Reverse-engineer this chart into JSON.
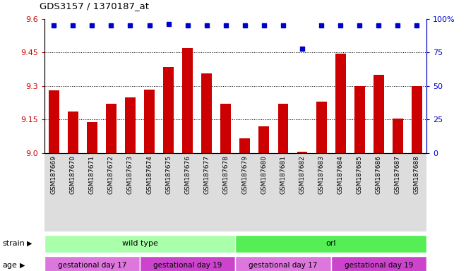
{
  "title": "GDS3157 / 1370187_at",
  "samples": [
    "GSM187669",
    "GSM187670",
    "GSM187671",
    "GSM187672",
    "GSM187673",
    "GSM187674",
    "GSM187675",
    "GSM187676",
    "GSM187677",
    "GSM187678",
    "GSM187679",
    "GSM187680",
    "GSM187681",
    "GSM187682",
    "GSM187683",
    "GSM187684",
    "GSM187685",
    "GSM187686",
    "GSM187687",
    "GSM187688"
  ],
  "bar_values": [
    9.28,
    9.185,
    9.14,
    9.22,
    9.25,
    9.285,
    9.385,
    9.47,
    9.355,
    9.22,
    9.065,
    9.12,
    9.22,
    9.005,
    9.23,
    9.445,
    9.3,
    9.35,
    9.155,
    9.3
  ],
  "percentile_values": [
    95,
    95,
    95,
    95,
    95,
    95,
    96,
    95,
    95,
    95,
    95,
    95,
    95,
    78,
    95,
    95,
    95,
    95,
    95,
    95
  ],
  "ylim_left": [
    9.0,
    9.6
  ],
  "ylim_right": [
    0,
    100
  ],
  "yticks_left": [
    9.0,
    9.15,
    9.3,
    9.45,
    9.6
  ],
  "yticks_right": [
    0,
    25,
    50,
    75,
    100
  ],
  "bar_color": "#cc0000",
  "dot_color": "#0000cc",
  "grid_ticks": [
    9.15,
    9.3,
    9.45
  ],
  "plot_bg": "#ffffff",
  "fig_bg": "#ffffff",
  "xticklabel_bg": "#dddddd",
  "strain_groups": [
    {
      "label": "wild type",
      "start": 0,
      "end": 10,
      "color": "#aaffaa"
    },
    {
      "label": "orl",
      "start": 10,
      "end": 20,
      "color": "#55ee55"
    }
  ],
  "age_groups": [
    {
      "label": "gestational day 17",
      "start": 0,
      "end": 5,
      "color": "#dd77dd"
    },
    {
      "label": "gestational day 19",
      "start": 5,
      "end": 10,
      "color": "#cc44cc"
    },
    {
      "label": "gestational day 17",
      "start": 10,
      "end": 15,
      "color": "#dd77dd"
    },
    {
      "label": "gestational day 19",
      "start": 15,
      "end": 20,
      "color": "#cc44cc"
    }
  ]
}
